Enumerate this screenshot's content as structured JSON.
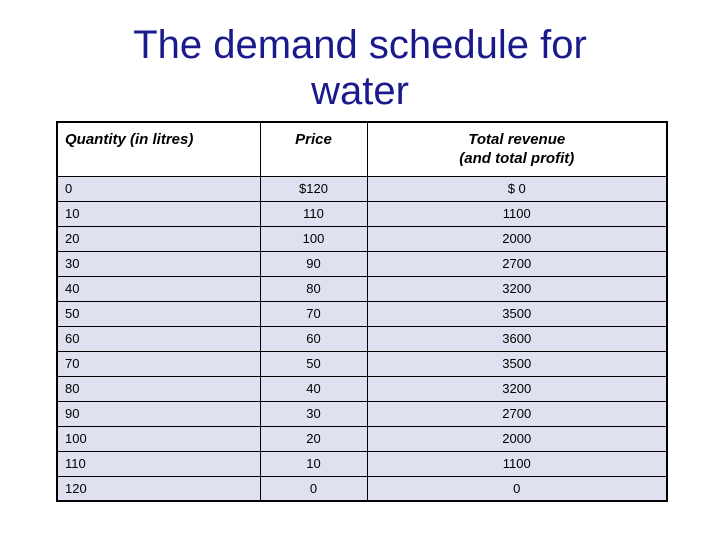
{
  "slide": {
    "background": "#ffffff",
    "title": {
      "line1": "The demand schedule for",
      "line2": "water",
      "full_text": "The demand schedule for water",
      "color": "#1a1a8c"
    }
  },
  "table": {
    "border_color": "#000000",
    "header_bg": "#ffffff",
    "row_bg": "#dfe1f0",
    "columns": [
      {
        "label": "Quantity (in litres)",
        "align": "left"
      },
      {
        "label": "Price",
        "align": "center"
      },
      {
        "label": "Total revenue\n(and total profit)",
        "align": "center"
      }
    ],
    "rows": [
      [
        "0",
        "$120",
        "$ 0"
      ],
      [
        "10",
        "110",
        "1100"
      ],
      [
        "20",
        "100",
        "2000"
      ],
      [
        "30",
        "90",
        "2700"
      ],
      [
        "40",
        "80",
        "3200"
      ],
      [
        "50",
        "70",
        "3500"
      ],
      [
        "60",
        "60",
        "3600"
      ],
      [
        "70",
        "50",
        "3500"
      ],
      [
        "80",
        "40",
        "3200"
      ],
      [
        "90",
        "30",
        "2700"
      ],
      [
        "100",
        "20",
        "2000"
      ],
      [
        "110",
        "10",
        "1100"
      ],
      [
        "120",
        "0",
        "0"
      ]
    ]
  },
  "chart_data": {
    "type": "table",
    "title": "The demand schedule for water",
    "categories": [
      "Quantity (in litres)",
      "Price",
      "Total revenue (and total profit)"
    ],
    "series": [
      {
        "name": "Quantity (in litres)",
        "values": [
          0,
          10,
          20,
          30,
          40,
          50,
          60,
          70,
          80,
          90,
          100,
          110,
          120
        ]
      },
      {
        "name": "Price",
        "values": [
          120,
          110,
          100,
          90,
          80,
          70,
          60,
          50,
          40,
          30,
          20,
          10,
          0
        ]
      },
      {
        "name": "Total revenue (and total profit)",
        "values": [
          0,
          1100,
          2000,
          2700,
          3200,
          3500,
          3600,
          3500,
          3200,
          2700,
          2000,
          1100,
          0
        ]
      }
    ]
  }
}
